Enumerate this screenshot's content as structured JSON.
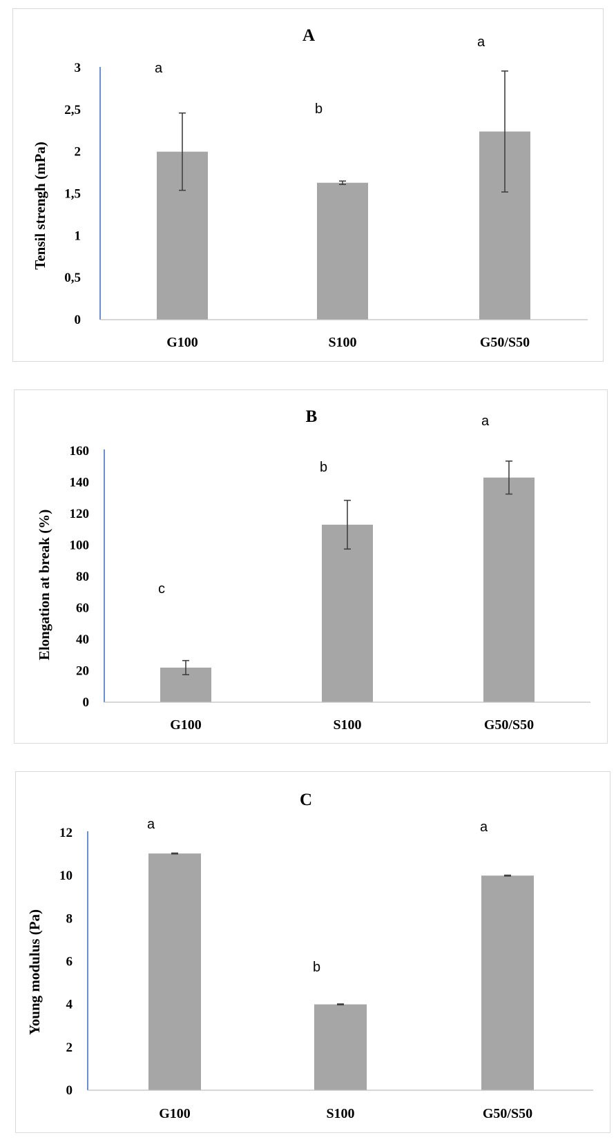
{
  "chart_data": [
    {
      "type": "bar",
      "title": "A",
      "ylabel": "Tensil strengh (mPa)",
      "xlabel": "",
      "categories": [
        "G100",
        "S100",
        "G50/S50"
      ],
      "values": [
        2.0,
        1.63,
        2.24
      ],
      "errors": [
        0.46,
        0.02,
        0.72
      ],
      "significance": [
        "a",
        "b",
        "a"
      ],
      "ylim": [
        0,
        3
      ],
      "yticks": [
        0,
        0.5,
        1,
        1.5,
        2,
        2.5,
        3
      ],
      "ytick_labels": [
        "0",
        "0,5",
        "1",
        "1,5",
        "2",
        "2,5",
        "3"
      ],
      "grid": false,
      "bar_color": "#a6a6a6"
    },
    {
      "type": "bar",
      "title": "B",
      "ylabel": "Elongation at break (%)",
      "xlabel": "",
      "categories": [
        "G100",
        "S100",
        "G50/S50"
      ],
      "values": [
        22,
        113,
        143
      ],
      "errors": [
        4.5,
        15.5,
        10.5
      ],
      "significance": [
        "c",
        "b",
        "a"
      ],
      "ylim": [
        0,
        160
      ],
      "yticks": [
        0,
        20,
        40,
        60,
        80,
        100,
        120,
        140,
        160
      ],
      "ytick_labels": [
        "0",
        "20",
        "40",
        "60",
        "80",
        "100",
        "120",
        "140",
        "160"
      ],
      "grid": false,
      "bar_color": "#a6a6a6"
    },
    {
      "type": "bar",
      "title": "C",
      "ylabel": "Young modulus (Pa)",
      "xlabel": "",
      "categories": [
        "G100",
        "S100",
        "G50/S50"
      ],
      "values": [
        11.03,
        4.0,
        10.0
      ],
      "errors": [
        0.02,
        0.02,
        0.02
      ],
      "significance": [
        "a",
        "b",
        "a"
      ],
      "ylim": [
        0,
        12
      ],
      "yticks": [
        0,
        2,
        4,
        6,
        8,
        10,
        12
      ],
      "ytick_labels": [
        "0",
        "2",
        "4",
        "6",
        "8",
        "10",
        "12"
      ],
      "grid": false,
      "bar_color": "#a6a6a6"
    }
  ]
}
